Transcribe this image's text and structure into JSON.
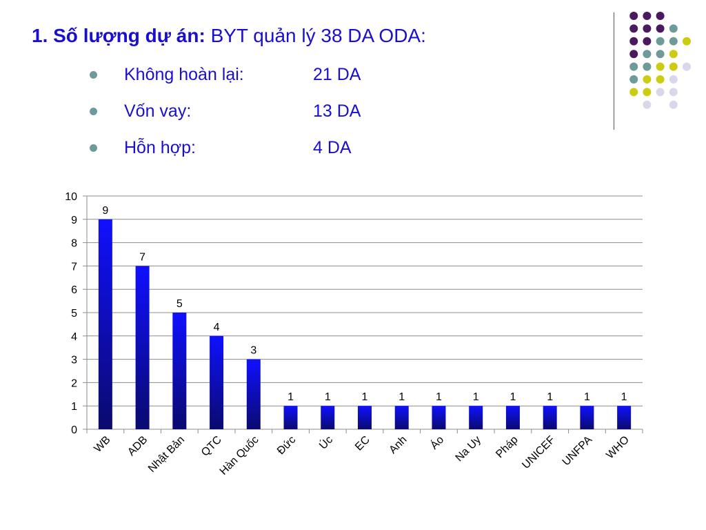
{
  "heading": {
    "bold_text": "1. Số lượng dự án:",
    "rest_text": " BYT quản lý 38 DA ODA:"
  },
  "bullets": [
    {
      "label": "Không hoàn lại:",
      "value": "21 DA"
    },
    {
      "label": "Vốn vay:",
      "value": "13 DA"
    },
    {
      "label": "Hỗn hợp:",
      "value": "4 DA"
    }
  ],
  "colors": {
    "title": "#1a0fd0",
    "bullet": "#6f9a9a",
    "bar_top": "#1010ff",
    "bar_bottom": "#0a0a6e",
    "dot_purple": "#4b1a5e",
    "dot_teal": "#6f9a9a",
    "dot_yellow": "#cccc10",
    "dot_lavender": "#d8d8ea"
  },
  "chart_data": {
    "type": "bar",
    "categories": [
      "WB",
      "ADB",
      "Nhật Bản",
      "QTC",
      "Hàn Quốc",
      "Đức",
      "Úc",
      "EC",
      "Anh",
      "Áo",
      "Na Uy",
      "Pháp",
      "UNICEF",
      "UNFPA",
      "WHO"
    ],
    "values": [
      9,
      7,
      5,
      4,
      3,
      1,
      1,
      1,
      1,
      1,
      1,
      1,
      1,
      1,
      1
    ],
    "ylim": [
      0,
      10
    ],
    "yticks": [
      0,
      1,
      2,
      3,
      4,
      5,
      6,
      7,
      8,
      9,
      10
    ],
    "grid": true,
    "data_labels": true,
    "xlabel_rotation": "diagonal"
  }
}
